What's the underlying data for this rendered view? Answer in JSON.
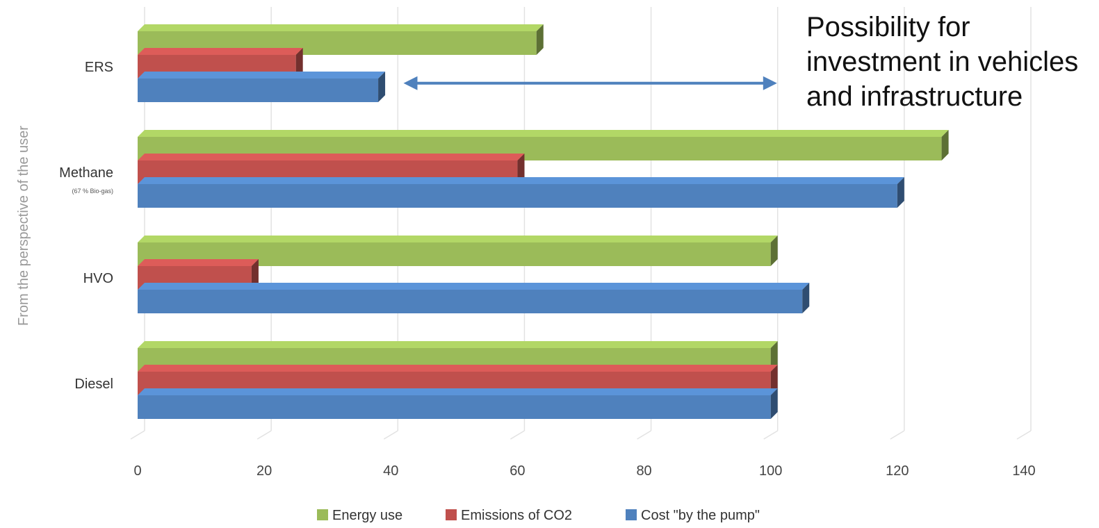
{
  "chart_data": {
    "type": "bar",
    "orientation": "horizontal",
    "categories": [
      "ERS",
      "Methane",
      "HVO",
      "Diesel"
    ],
    "category_notes": {
      "Methane": "(67 % Bio-gas)"
    },
    "series": [
      {
        "name": "Energy use",
        "color": "#9BBB59",
        "values": [
          63,
          127,
          100,
          100
        ]
      },
      {
        "name": "Emissions of CO2",
        "color": "#C0504D",
        "values": [
          25,
          60,
          18,
          100
        ]
      },
      {
        "name": "Cost \"by the pump\"",
        "color": "#4F81BD",
        "values": [
          38,
          120,
          105,
          100
        ]
      }
    ],
    "xlim": [
      0,
      140
    ],
    "x_ticks": [
      0,
      20,
      40,
      60,
      80,
      100,
      120,
      140
    ],
    "ylabel": "From the perspective of the user",
    "grid": true,
    "legend_position": "bottom",
    "annotation": {
      "lines": [
        "Possibility for",
        "investment in vehicles",
        "and infrastructure"
      ],
      "arrow_from": 42,
      "arrow_to": 101,
      "arrow_category": "ERS"
    }
  }
}
